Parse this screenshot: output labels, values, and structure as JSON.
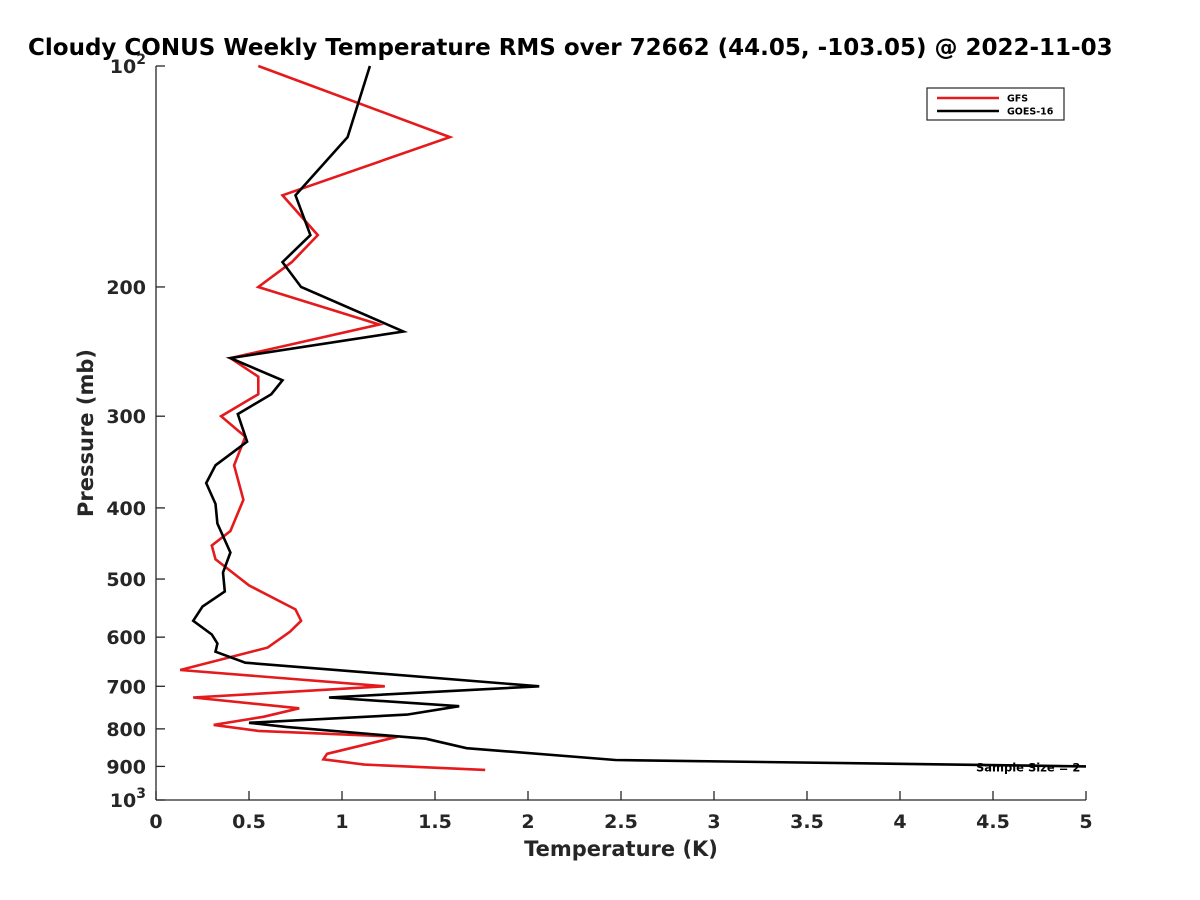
{
  "chart_data": {
    "type": "line",
    "title": "Cloudy CONUS Weekly Temperature RMS over 72662 (44.05, -103.05) @ 2022-11-03",
    "xlabel": "Temperature (K)",
    "ylabel": "Pressure (mb)",
    "xlim": [
      0,
      5
    ],
    "ylim": [
      100,
      1000
    ],
    "y_scale": "log",
    "y_reversed": true,
    "grid": false,
    "legend_position": "top-right",
    "x_ticks": [
      "0",
      "0.5",
      "1",
      "1.5",
      "2",
      "2.5",
      "3",
      "3.5",
      "4",
      "4.5",
      "5"
    ],
    "y_ticks": [
      {
        "value": 100,
        "base": "10",
        "exp": "2"
      },
      {
        "value": 200,
        "label": "200"
      },
      {
        "value": 300,
        "label": "300"
      },
      {
        "value": 400,
        "label": "400"
      },
      {
        "value": 500,
        "label": "500"
      },
      {
        "value": 600,
        "label": "600"
      },
      {
        "value": 700,
        "label": "700"
      },
      {
        "value": 800,
        "label": "800"
      },
      {
        "value": 900,
        "label": "900"
      },
      {
        "value": 1000,
        "base": "10",
        "exp": "3"
      }
    ],
    "series": [
      {
        "name": "GFS",
        "color": "#e41a1c",
        "points": [
          [
            0.55,
            100
          ],
          [
            1.58,
            125
          ],
          [
            0.68,
            150
          ],
          [
            0.87,
            170
          ],
          [
            0.73,
            185
          ],
          [
            0.55,
            200
          ],
          [
            1.2,
            225
          ],
          [
            0.4,
            250
          ],
          [
            0.55,
            265
          ],
          [
            0.55,
            280
          ],
          [
            0.35,
            300
          ],
          [
            0.48,
            320
          ],
          [
            0.42,
            350
          ],
          [
            0.47,
            390
          ],
          [
            0.4,
            430
          ],
          [
            0.3,
            450
          ],
          [
            0.32,
            470
          ],
          [
            0.5,
            510
          ],
          [
            0.75,
            550
          ],
          [
            0.78,
            570
          ],
          [
            0.72,
            590
          ],
          [
            0.6,
            620
          ],
          [
            0.13,
            665
          ],
          [
            1.23,
            700
          ],
          [
            0.2,
            725
          ],
          [
            0.77,
            750
          ],
          [
            0.58,
            770
          ],
          [
            0.31,
            790
          ],
          [
            0.55,
            805
          ],
          [
            1.3,
            820
          ],
          [
            0.92,
            865
          ],
          [
            0.9,
            880
          ],
          [
            1.12,
            895
          ],
          [
            1.77,
            910
          ]
        ]
      },
      {
        "name": "GOES-16",
        "color": "#000000",
        "points": [
          [
            1.15,
            100
          ],
          [
            1.03,
            125
          ],
          [
            0.75,
            150
          ],
          [
            0.83,
            170
          ],
          [
            0.68,
            185
          ],
          [
            0.78,
            200
          ],
          [
            1.33,
            230
          ],
          [
            0.4,
            250
          ],
          [
            0.68,
            268
          ],
          [
            0.62,
            280
          ],
          [
            0.44,
            298
          ],
          [
            0.49,
            325
          ],
          [
            0.32,
            350
          ],
          [
            0.27,
            370
          ],
          [
            0.32,
            395
          ],
          [
            0.33,
            420
          ],
          [
            0.4,
            460
          ],
          [
            0.36,
            490
          ],
          [
            0.37,
            520
          ],
          [
            0.25,
            545
          ],
          [
            0.2,
            570
          ],
          [
            0.3,
            595
          ],
          [
            0.33,
            612
          ],
          [
            0.32,
            628
          ],
          [
            0.48,
            650
          ],
          [
            2.06,
            700
          ],
          [
            0.93,
            725
          ],
          [
            1.63,
            745
          ],
          [
            1.35,
            765
          ],
          [
            0.5,
            785
          ],
          [
            0.7,
            795
          ],
          [
            1.45,
            825
          ],
          [
            1.67,
            850
          ],
          [
            2.47,
            882
          ],
          [
            5.0,
            900
          ]
        ]
      }
    ],
    "annotations": [
      {
        "text": "Sample Size = 2",
        "x": 4.43,
        "y": 900
      }
    ]
  }
}
